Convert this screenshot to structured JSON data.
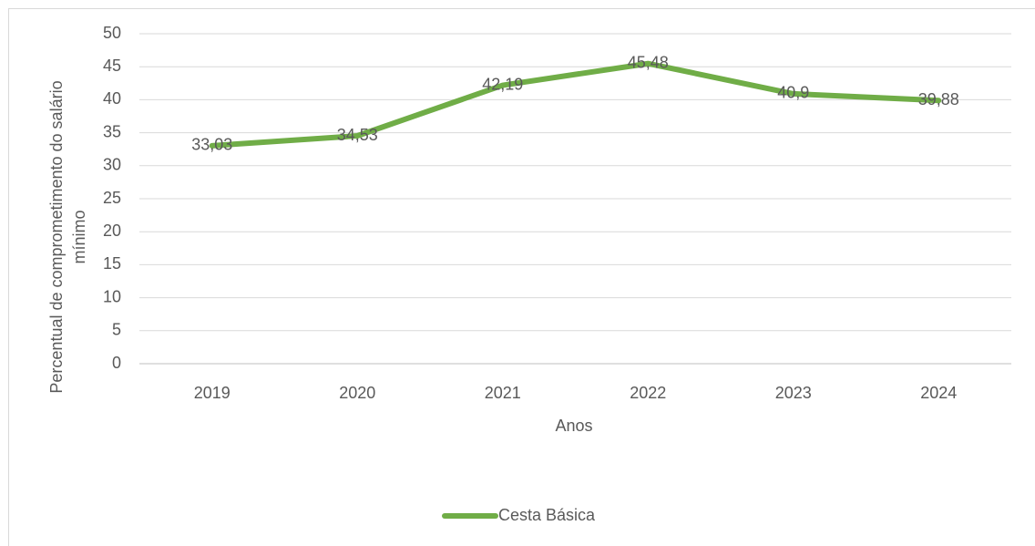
{
  "chart_data": {
    "type": "line",
    "categories": [
      "2019",
      "2020",
      "2021",
      "2022",
      "2023",
      "2024"
    ],
    "series": [
      {
        "name": "Cesta Básica",
        "color": "#70ad47",
        "values": [
          33.03,
          34.53,
          42.19,
          45.48,
          40.9,
          39.88
        ],
        "value_labels": [
          "33,03",
          "34,53",
          "42,19",
          "45,48",
          "40,9",
          "39,88"
        ]
      }
    ],
    "ylim": [
      0,
      50
    ],
    "yticks": [
      0,
      5,
      10,
      15,
      20,
      25,
      30,
      35,
      40,
      45,
      50
    ],
    "grid": true,
    "xlabel": "Anos",
    "ylabel": [
      "Percentual de comprometimento do salário",
      "mínimo"
    ],
    "legend": "bottom"
  }
}
